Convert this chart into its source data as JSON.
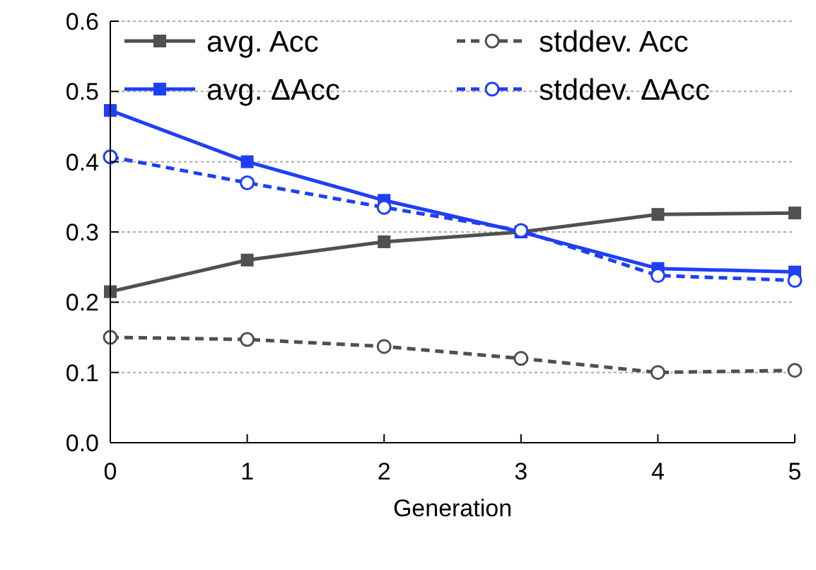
{
  "chart_data": {
    "type": "line",
    "xlabel": "Generation",
    "x": [
      0,
      1,
      2,
      3,
      4,
      5
    ],
    "xlim": [
      0,
      5
    ],
    "xticks": [
      0,
      1,
      2,
      3,
      4,
      5
    ],
    "ylim": [
      0,
      0.6
    ],
    "yticks": [
      {
        "value": 0,
        "label": "0.0"
      },
      {
        "value": 0.1,
        "label": "0.1"
      },
      {
        "value": 0.2,
        "label": "0.2"
      },
      {
        "value": 0.3,
        "label": "0.3"
      },
      {
        "value": 0.4,
        "label": "0.4"
      },
      {
        "value": 0.5,
        "label": "0.5"
      },
      {
        "value": 0.6,
        "label": "0.6"
      }
    ],
    "grid": "y",
    "legend": "top",
    "series": [
      {
        "name": "avg. Acc",
        "color": "#505050",
        "marker": "square",
        "line_style": "solid",
        "values": [
          0.215,
          0.26,
          0.286,
          0.3,
          0.325,
          0.327
        ]
      },
      {
        "name": "stddev. Acc",
        "color": "#505050",
        "marker": "circle",
        "line_style": "dashed",
        "values": [
          0.15,
          0.147,
          0.137,
          0.12,
          0.1,
          0.103
        ]
      },
      {
        "name": "avg. ΔAcc",
        "color": "#1f3ff5",
        "marker": "square",
        "line_style": "solid",
        "values": [
          0.473,
          0.4,
          0.345,
          0.3,
          0.248,
          0.243
        ]
      },
      {
        "name": "stddev. ΔAcc",
        "color": "#1f3ff5",
        "marker": "circle",
        "line_style": "dashed",
        "values": [
          0.407,
          0.37,
          0.335,
          0.302,
          0.238,
          0.231
        ]
      }
    ]
  }
}
